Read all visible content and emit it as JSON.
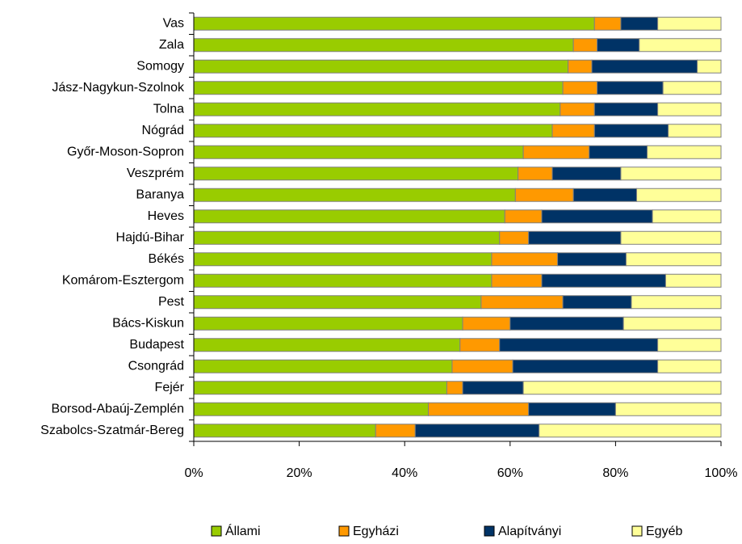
{
  "chart_data": {
    "type": "stacked_barh",
    "categories": [
      "Vas",
      "Zala",
      "Somogy",
      "Jász-Nagykun-Szolnok",
      "Tolna",
      "Nógrád",
      "Győr-Moson-Sopron",
      "Veszprém",
      "Baranya",
      "Heves",
      "Hajdú-Bihar",
      "Békés",
      "Komárom-Esztergom",
      "Pest",
      "Bács-Kiskun",
      "Budapest",
      "Csongrád",
      "Fejér",
      "Borsod-Abaúj-Zemplén",
      "Szabolcs-Szatmár-Bereg"
    ],
    "series": [
      {
        "name": "Állami",
        "color": "#99cc00",
        "values": [
          76,
          72,
          71,
          70,
          69.5,
          68,
          62.5,
          61.5,
          61,
          59,
          58,
          56.5,
          56.5,
          54.5,
          51,
          50.5,
          49,
          48,
          44.5,
          34.5
        ]
      },
      {
        "name": "Egyházi",
        "color": "#ff9900",
        "values": [
          5,
          4.5,
          4.5,
          6.5,
          6.5,
          8,
          12.5,
          6.5,
          11,
          7,
          5.5,
          12.5,
          9.5,
          15.5,
          9,
          7.5,
          11.5,
          3,
          19,
          7.5
        ]
      },
      {
        "name": "Alapítványi",
        "color": "#003366",
        "values": [
          7,
          8,
          20,
          12.5,
          12,
          14,
          11,
          13,
          12,
          21,
          17.5,
          13,
          23.5,
          13,
          21.5,
          30,
          27.5,
          11.5,
          16.5,
          23.5
        ]
      },
      {
        "name": "Egyéb",
        "color": "#ffff99",
        "values": [
          12,
          15.5,
          4.5,
          11,
          12,
          10,
          14,
          19,
          16,
          13,
          19,
          18,
          10.5,
          17,
          18.5,
          12,
          12,
          37.5,
          20,
          34.5
        ]
      }
    ],
    "xlim": [
      0,
      100
    ],
    "xticks": [
      {
        "value": 0,
        "label": "0%"
      },
      {
        "value": 20,
        "label": "20%"
      },
      {
        "value": 40,
        "label": "40%"
      },
      {
        "value": 60,
        "label": "60%"
      },
      {
        "value": 80,
        "label": "80%"
      },
      {
        "value": 100,
        "label": "100%"
      }
    ],
    "legend": "bottom"
  }
}
